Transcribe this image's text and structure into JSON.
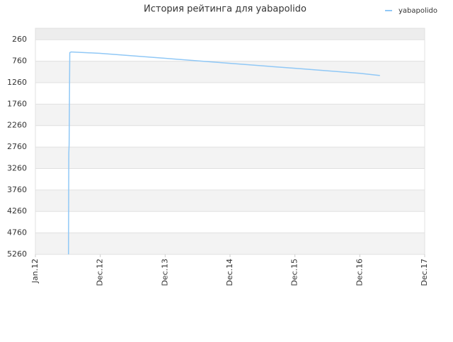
{
  "chart_data": {
    "type": "line",
    "title": "История рейтинга для yabapolido",
    "x": [
      0.51,
      0.515,
      0.52,
      0.53,
      0.55,
      1,
      2,
      3,
      4,
      5,
      5.31
    ],
    "series": [
      {
        "name": "yabapolido",
        "color": "#90c8f6",
        "values": [
          5260,
          2900,
          2700,
          560,
          545,
          577,
          693,
          810,
          926,
          1043,
          1093
        ]
      }
    ],
    "xlim": [
      0,
      6
    ],
    "xticks": [
      {
        "value": 0,
        "label": "Jan.12"
      },
      {
        "value": 1,
        "label": "Dec.12"
      },
      {
        "value": 2,
        "label": "Dec.13"
      },
      {
        "value": 3,
        "label": "Dec.14"
      },
      {
        "value": 4,
        "label": "Dec.15"
      },
      {
        "value": 5,
        "label": "Dec.16"
      },
      {
        "value": 6,
        "label": "Dec.17"
      }
    ],
    "ylim": [
      5260,
      -7
    ],
    "yticks": [
      260,
      760,
      1260,
      1760,
      2260,
      2760,
      3260,
      3760,
      4260,
      4760,
      5260
    ],
    "grid": true,
    "legend": "top-right"
  }
}
